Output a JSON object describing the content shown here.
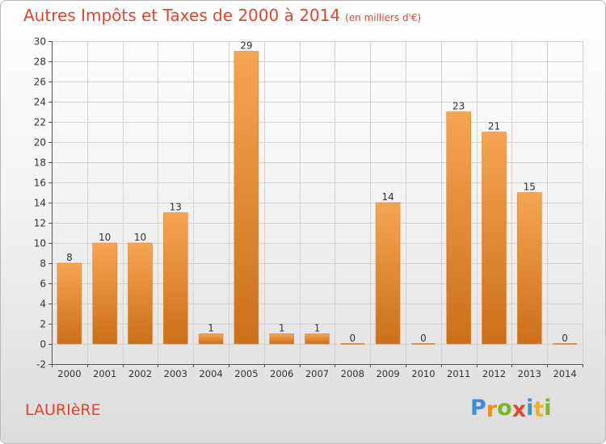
{
  "header": {
    "title": "Autres Impôts et Taxes de 2000 à 2014",
    "unit": "(en milliers d'€)"
  },
  "footer": {
    "commune": "LAURIèRE",
    "logo": {
      "letters": [
        "P",
        "r",
        "o",
        "x",
        "i",
        "t",
        "i"
      ],
      "colors": [
        "#3a8fd8",
        "#f28c1c",
        "#78b828",
        "#e8452c",
        "#3a8fd8",
        "#f2b01c",
        "#78b828"
      ]
    }
  },
  "colors": {
    "title": "#e0462c",
    "bar_light": "#f6a552",
    "bar_dark": "#cc6f18",
    "grid": "#d2d2d2",
    "axis_text": "#333333"
  },
  "chart_data": {
    "type": "bar",
    "categories": [
      "2000",
      "2001",
      "2002",
      "2003",
      "2004",
      "2005",
      "2006",
      "2007",
      "2008",
      "2009",
      "2010",
      "2011",
      "2012",
      "2013",
      "2014"
    ],
    "values": [
      8,
      10,
      10,
      13,
      1,
      29,
      1,
      1,
      0,
      14,
      0,
      23,
      21,
      15,
      0
    ],
    "data_labels": [
      "8",
      "10",
      "10",
      "13",
      "1",
      "29",
      "1",
      "1",
      "0",
      "14",
      "0",
      "23",
      "21",
      "15",
      "0"
    ],
    "ylim": [
      -2,
      30
    ],
    "yticks": [
      -2,
      0,
      2,
      4,
      6,
      8,
      10,
      12,
      14,
      16,
      18,
      20,
      22,
      24,
      26,
      28,
      30
    ],
    "ytick_labels": [
      "-2",
      "0",
      "2",
      "4",
      "6",
      "8",
      "10",
      "12",
      "14",
      "16",
      "18",
      "20",
      "22",
      "24",
      "26",
      "28",
      "30"
    ],
    "grid": true,
    "xlabel": "",
    "ylabel": "",
    "legend": "none"
  }
}
